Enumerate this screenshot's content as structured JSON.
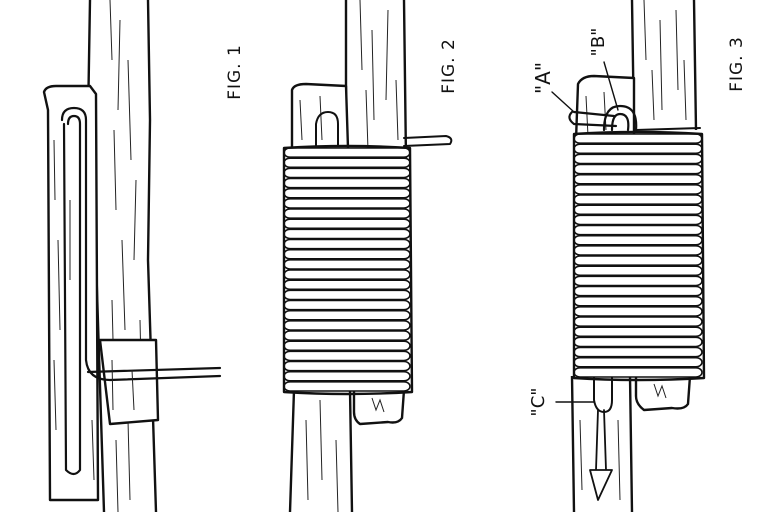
{
  "figures": [
    {
      "id": "fig1",
      "label": "FIG. 1"
    },
    {
      "id": "fig2",
      "label": "FIG. 2"
    },
    {
      "id": "fig3",
      "label": "FIG. 3"
    }
  ],
  "callouts": [
    {
      "id": "A",
      "text": "\"A\""
    },
    {
      "id": "B",
      "text": "\"B\""
    },
    {
      "id": "C",
      "text": "\"C\""
    }
  ],
  "colors": {
    "ink": "#111111",
    "paper": "#ffffff"
  }
}
